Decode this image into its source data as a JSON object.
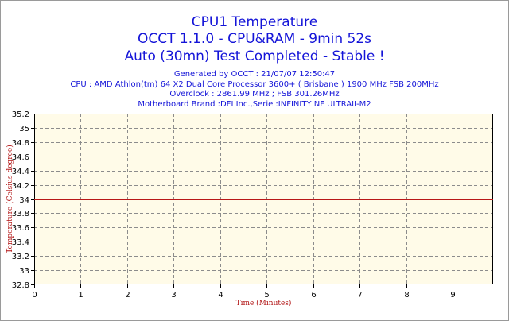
{
  "header": {
    "title": "CPU1 Temperature",
    "subtitle1": "OCCT 1.1.0 - CPU&RAM - 9min 52s",
    "subtitle2": "Auto (30mn) Test Completed - Stable !",
    "info_lines": [
      "Generated by OCCT : 21/07/07 12:50:47",
      "CPU : AMD Athlon(tm) 64 X2 Dual Core Processor 3600+ ( Brisbane ) 1900 MHz FSB 200MHz",
      "Overclock : 2861.99 MHz ; FSB 301.26MHz",
      "Motherboard Brand :DFI Inc.,Serie :INFINITY NF ULTRAII-M2"
    ]
  },
  "colors": {
    "title": "#1414d8",
    "plot_background": "#fffbe8",
    "series_line": "#b81818",
    "grid": "#8c8c8c",
    "axis_title": "#b01010"
  },
  "chart_data": {
    "type": "line",
    "title": "CPU1 Temperature",
    "xlabel": "Time (Minutes)",
    "ylabel": "Temperature (Celsius degree)",
    "xlim": [
      0,
      9.87
    ],
    "ylim": [
      32.8,
      35.2
    ],
    "x_ticks": [
      "0",
      "1",
      "2",
      "3",
      "4",
      "5",
      "6",
      "7",
      "8",
      "9"
    ],
    "y_ticks": [
      "35.2",
      "35",
      "34.8",
      "34.6",
      "34.4",
      "34.2",
      "34",
      "33.8",
      "33.6",
      "33.4",
      "33.2",
      "33",
      "32.8"
    ],
    "grid": true,
    "series": [
      {
        "x": [
          0,
          9.87
        ],
        "values": [
          34,
          34
        ]
      }
    ]
  }
}
